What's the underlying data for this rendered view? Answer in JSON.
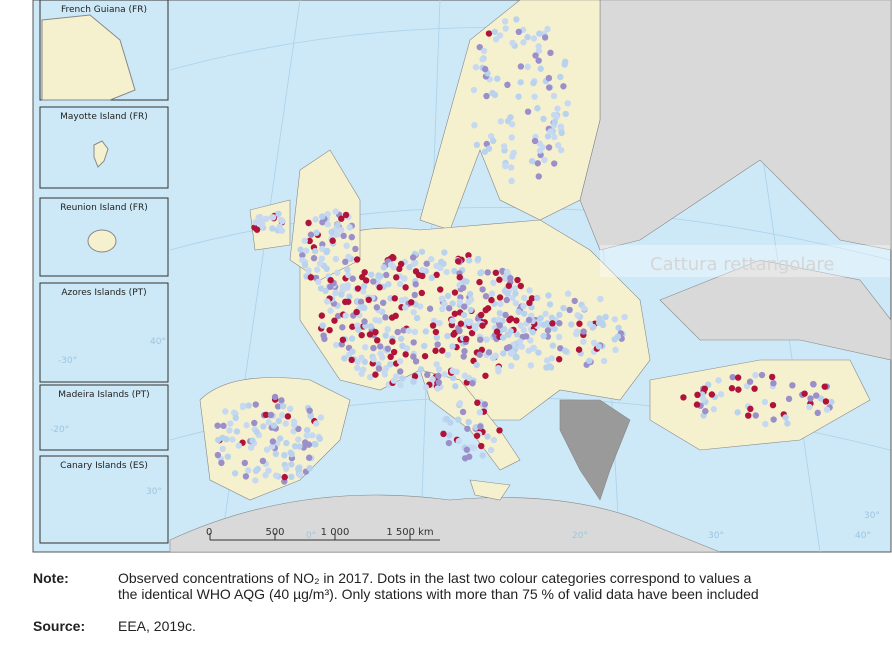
{
  "insets": [
    "French Guiana (FR)",
    "Mayotte Island (FR)",
    "Reunion Island (FR)",
    "Azores Islands (PT)",
    "Madeira Islands (PT)",
    "Canary Islands (ES)"
  ],
  "graticule_labels": [
    "-30°",
    "40°",
    "-20°",
    "30°",
    "0°",
    "20°",
    "30°",
    "30°",
    "40°"
  ],
  "scale_bar": [
    "0",
    "500",
    "1 000",
    "1 500 km"
  ],
  "overlay": "Cattura rettangolare",
  "note": {
    "label": "Note:",
    "lines": [
      "Observed concentrations of NO₂ in 2017. Dots in the last two colour categories correspond to values a",
      "the identical WHO AQG (40 µg/m³). Only stations with more than 75 % of valid data have been included"
    ]
  },
  "source": {
    "label": "Source:",
    "text": "EEA, 2019c."
  }
}
